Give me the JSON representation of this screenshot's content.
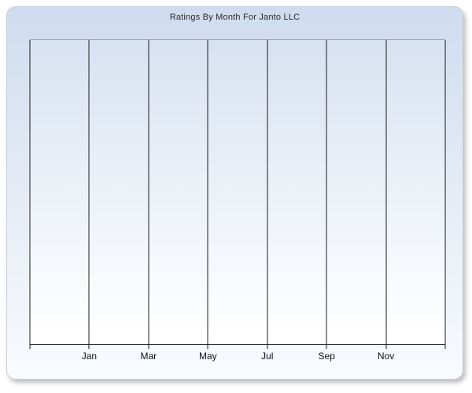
{
  "panel": {
    "title": "Ratings By Month For Janto LLC"
  },
  "theme": {
    "panel_gradient_top": "#cfdcef",
    "panel_gradient_bottom": "#f8fbfe",
    "plot_gradient_top": "#d7e2f1",
    "plot_gradient_bottom": "#ffffff",
    "gridline_color": "#1c1c1c",
    "plot_top_border_color": "#9aa2b0",
    "panel_border_color": "#c8cdd6",
    "title_color": "#2b2b2b",
    "label_color": "#111111"
  },
  "chart_data": {
    "type": "line",
    "title": "Ratings By Month For Janto LLC",
    "categories": [
      "Jan",
      "Mar",
      "May",
      "Jul",
      "Sep",
      "Nov"
    ],
    "series": [],
    "xlabel": "",
    "ylabel": "",
    "y_tick_labels": [],
    "legend": "none",
    "grid": "vertical-only",
    "vertical_gridline_count": 8,
    "plot_is_empty": true
  }
}
